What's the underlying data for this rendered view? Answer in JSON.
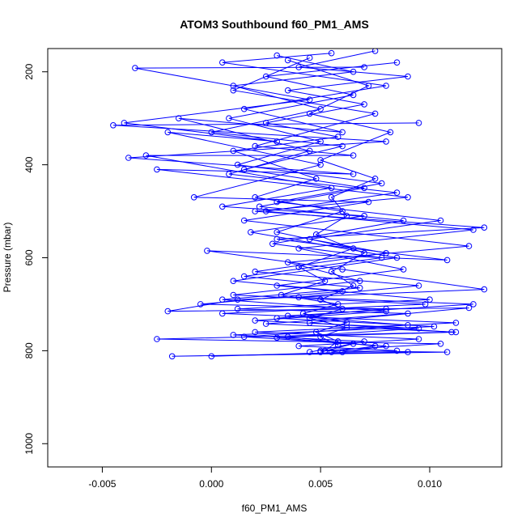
{
  "chart_data": {
    "type": "line",
    "title": "ATOM3 Southbound f60_PM1_AMS",
    "xlabel": "f60_PM1_AMS",
    "ylabel": "Pressure (mbar)",
    "xlim": [
      -0.0075,
      0.0133
    ],
    "ylim": [
      1050,
      150
    ],
    "y_reversed": true,
    "x_ticks": [
      -0.005,
      0.0,
      0.005,
      0.01
    ],
    "x_tick_labels": [
      "-0.005",
      "0.000",
      "0.005",
      "0.010"
    ],
    "y_ticks": [
      200,
      400,
      600,
      800,
      1000
    ],
    "y_tick_labels": [
      "200",
      "400",
      "600",
      "800",
      "1000"
    ],
    "series_color": "#0000ff",
    "marker": "open-circle",
    "grid": false,
    "series": [
      {
        "points": [
          [
            0.0095,
            310
          ],
          [
            -0.0045,
            315
          ],
          [
            0.008,
            350
          ],
          [
            -0.0038,
            385
          ],
          [
            0.0065,
            420
          ],
          [
            -0.0025,
            410
          ],
          [
            0.009,
            470
          ],
          [
            0.002,
            500
          ],
          [
            0.0125,
            535
          ],
          [
            0.003,
            560
          ],
          [
            0.0108,
            605
          ],
          [
            -0.0002,
            585
          ],
          [
            0.006,
            625
          ],
          [
            0.0125,
            668
          ],
          [
            0.0012,
            690
          ],
          [
            -0.002,
            715
          ],
          [
            0.0118,
            708
          ],
          [
            0.0045,
            740
          ],
          [
            0.011,
            760
          ],
          [
            -0.0025,
            775
          ],
          [
            0.0105,
            785
          ],
          [
            0.005,
            800
          ],
          [
            0.0108,
            803
          ],
          [
            -0.0018,
            812
          ],
          [
            0.009,
            803
          ]
        ]
      },
      {
        "points": [
          [
            0.007,
            190
          ],
          [
            -0.0035,
            192
          ],
          [
            0.0045,
            260
          ],
          [
            -0.004,
            310
          ],
          [
            0.003,
            350
          ],
          [
            -0.002,
            330
          ],
          [
            0.005,
            400
          ],
          [
            -0.0008,
            470
          ],
          [
            0.0072,
            480
          ],
          [
            0.0015,
            520
          ],
          [
            0.0118,
            575
          ],
          [
            0.0035,
            610
          ],
          [
            0.0068,
            650
          ],
          [
            0.001,
            680
          ],
          [
            0.0098,
            700
          ],
          [
            0.0005,
            720
          ],
          [
            0.0112,
            740
          ],
          [
            0.002,
            760
          ],
          [
            0.0095,
            775
          ],
          [
            0.004,
            790
          ],
          [
            0.0085,
            800
          ],
          [
            0.0,
            812
          ]
        ]
      },
      {
        "points": [
          [
            0.0055,
            160
          ],
          [
            0.0005,
            180
          ],
          [
            0.008,
            230
          ],
          [
            0.0015,
            280
          ],
          [
            0.006,
            330
          ],
          [
            -0.0015,
            300
          ],
          [
            0.0045,
            370
          ],
          [
            0.0008,
            420
          ],
          [
            0.0085,
            460
          ],
          [
            0.0025,
            500
          ],
          [
            0.012,
            540
          ],
          [
            0.004,
            580
          ],
          [
            0.0088,
            625
          ],
          [
            0.003,
            660
          ],
          [
            0.01,
            690
          ],
          [
            0.0012,
            710
          ],
          [
            0.009,
            720
          ],
          [
            0.0025,
            742
          ],
          [
            0.0112,
            760
          ],
          [
            0.0035,
            770
          ],
          [
            0.0075,
            790
          ],
          [
            0.0055,
            803
          ]
        ]
      },
      {
        "points": [
          [
            0.0045,
            170
          ],
          [
            0.001,
            240
          ],
          [
            0.0075,
            290
          ],
          [
            0.002,
            360
          ],
          [
            0.0065,
            380
          ],
          [
            -0.003,
            380
          ],
          [
            0.0055,
            450
          ],
          [
            0.0005,
            490
          ],
          [
            0.007,
            510
          ],
          [
            0.0018,
            545
          ],
          [
            0.0085,
            600
          ],
          [
            0.001,
            650
          ],
          [
            0.006,
            672
          ],
          [
            -0.0005,
            700
          ],
          [
            0.008,
            710
          ],
          [
            0.003,
            730
          ],
          [
            0.0102,
            748
          ],
          [
            0.001,
            766
          ],
          [
            0.007,
            780
          ],
          [
            0.0045,
            803
          ]
        ]
      },
      {
        "points": [
          [
            0.0085,
            180
          ],
          [
            0.0025,
            210
          ],
          [
            0.0065,
            250
          ],
          [
            0.0008,
            300
          ],
          [
            0.005,
            350
          ],
          [
            0.0012,
            400
          ],
          [
            0.0078,
            440
          ],
          [
            0.003,
            480
          ],
          [
            0.0105,
            520
          ],
          [
            0.0045,
            560
          ],
          [
            0.008,
            590
          ],
          [
            0.002,
            630
          ],
          [
            0.0095,
            660
          ],
          [
            0.004,
            685
          ],
          [
            0.012,
            700
          ],
          [
            0.0035,
            725
          ],
          [
            0.009,
            745
          ],
          [
            0.0015,
            770
          ],
          [
            0.008,
            790
          ],
          [
            0.006,
            803
          ]
        ]
      },
      {
        "points": [
          [
            0.003,
            165
          ],
          [
            0.0065,
            200
          ],
          [
            0.001,
            230
          ],
          [
            0.005,
            280
          ],
          [
            0.0,
            330
          ],
          [
            0.006,
            360
          ],
          [
            0.0015,
            410
          ],
          [
            0.007,
            450
          ],
          [
            0.0022,
            490
          ],
          [
            0.0088,
            520
          ],
          [
            0.0028,
            570
          ],
          [
            0.0078,
            600
          ],
          [
            0.0015,
            640
          ],
          [
            0.0068,
            665
          ],
          [
            0.0005,
            690
          ],
          [
            0.008,
            715
          ],
          [
            0.002,
            735
          ],
          [
            0.0095,
            752
          ],
          [
            0.003,
            772
          ],
          [
            0.0065,
            785
          ],
          [
            0.005,
            803
          ]
        ]
      },
      {
        "points": [
          [
            0.0075,
            155
          ],
          [
            0.004,
            190
          ],
          [
            0.009,
            210
          ],
          [
            0.0035,
            240
          ],
          [
            0.007,
            270
          ],
          [
            0.0025,
            310
          ],
          [
            0.0058,
            340
          ],
          [
            0.001,
            370
          ],
          [
            0.0048,
            430
          ],
          [
            0.002,
            470
          ],
          [
            0.006,
            500
          ],
          [
            0.003,
            545
          ],
          [
            0.0065,
            580
          ],
          [
            0.004,
            620
          ],
          [
            0.0052,
            650
          ],
          [
            0.0032,
            680
          ],
          [
            0.0058,
            700
          ],
          [
            0.0042,
            720
          ],
          [
            0.0062,
            740
          ],
          [
            0.0048,
            760
          ],
          [
            0.0058,
            780
          ],
          [
            0.0052,
            800
          ]
        ]
      },
      {
        "points": [
          [
            0.0035,
            175
          ],
          [
            0.0072,
            230
          ],
          [
            0.0045,
            290
          ],
          [
            0.0082,
            330
          ],
          [
            0.005,
            390
          ],
          [
            0.0075,
            430
          ],
          [
            0.0055,
            470
          ],
          [
            0.0062,
            510
          ],
          [
            0.0048,
            550
          ],
          [
            0.007,
            590
          ],
          [
            0.0055,
            630
          ],
          [
            0.0065,
            660
          ],
          [
            0.005,
            690
          ],
          [
            0.006,
            710
          ],
          [
            0.0045,
            730
          ],
          [
            0.0062,
            750
          ],
          [
            0.005,
            770
          ],
          [
            0.0058,
            788
          ]
        ]
      }
    ]
  }
}
